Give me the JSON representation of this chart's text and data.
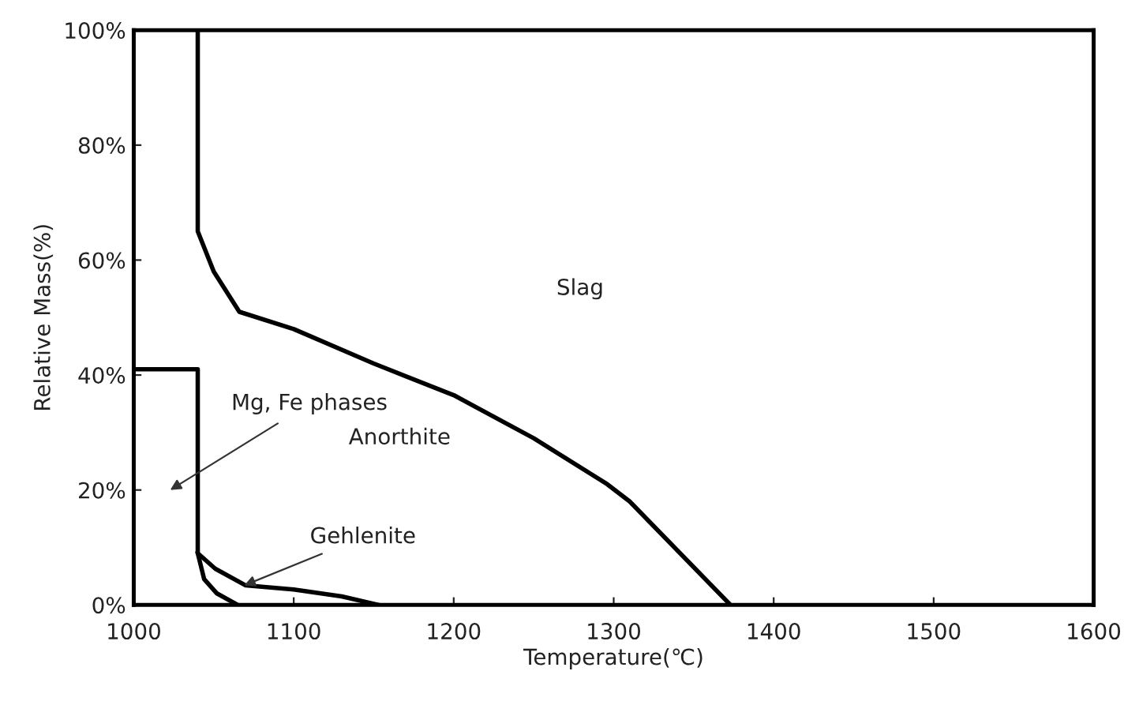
{
  "chart_data": {
    "type": "line",
    "xlabel": "Temperature(℃)",
    "ylabel": "Relative Mass(%)",
    "xlim": [
      1000,
      1600
    ],
    "xticks": [
      1000,
      1100,
      1200,
      1300,
      1400,
      1500,
      1600
    ],
    "ylim": [
      0,
      100
    ],
    "yticks": [
      {
        "value": 0,
        "label": "0%"
      },
      {
        "value": 20,
        "label": "20%"
      },
      {
        "value": 40,
        "label": "40%"
      },
      {
        "value": 60,
        "label": "60%"
      },
      {
        "value": 80,
        "label": "80%"
      },
      {
        "value": 100,
        "label": "100%"
      }
    ],
    "grid": false,
    "legend": false,
    "marker": "none",
    "line_style": "solid",
    "series": [
      {
        "color": "#000000",
        "x": [
          1040,
          1040,
          1050,
          1066,
          1100,
          1150,
          1200,
          1250,
          1296,
          1310,
          1373
        ],
        "values": [
          100,
          65,
          58,
          51,
          48,
          42,
          36.5,
          29,
          21,
          18,
          0
        ]
      },
      {
        "color": "#000000",
        "x": [
          1000,
          1040,
          1040,
          1040,
          1051,
          1070,
          1100,
          1130,
          1153
        ],
        "values": [
          41,
          41,
          11,
          9,
          6.3,
          3.4,
          2.7,
          1.5,
          0
        ]
      },
      {
        "color": "#000000",
        "x": [
          1040,
          1044,
          1052,
          1065
        ],
        "values": [
          9,
          4.5,
          2,
          0
        ]
      }
    ],
    "annotations": [
      "Slag",
      "Anorthite",
      "Mg, Fe phases",
      {
        "text": "Gehlenite",
        "x": 1069,
        "y": 3.4
      }
    ]
  }
}
